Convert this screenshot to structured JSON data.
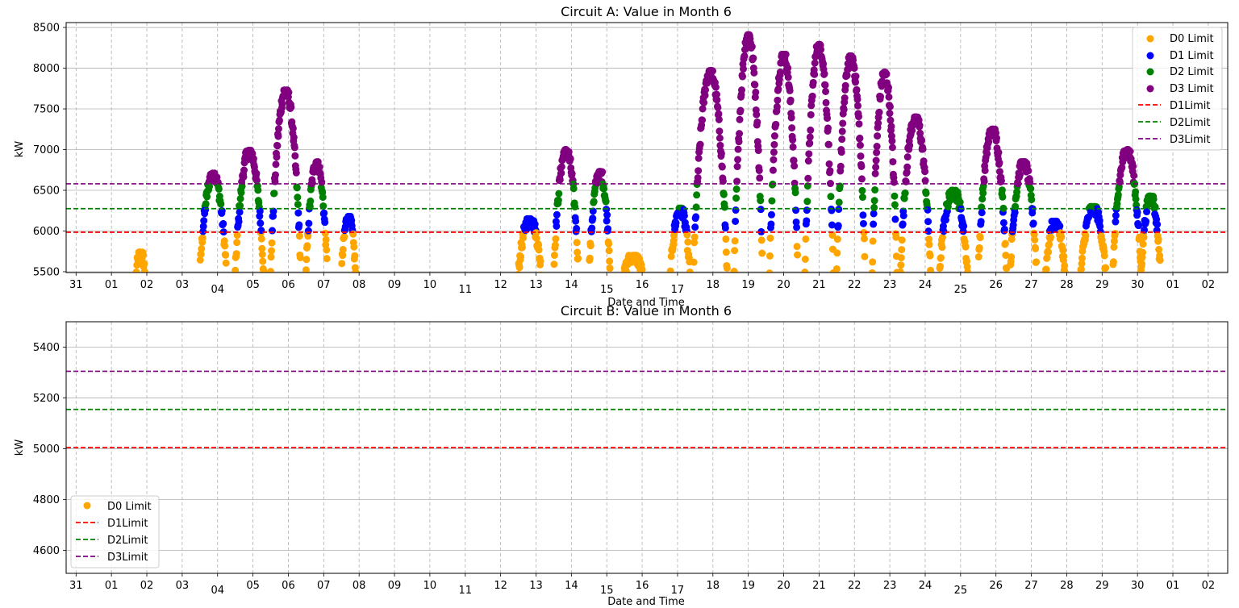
{
  "chart_data": [
    {
      "type": "scatter",
      "title": "Circuit A: Value in Month 6",
      "xlabel": "Date and Time",
      "ylabel": "kW",
      "ylim": [
        5490,
        8560
      ],
      "yticks": [
        5500,
        6000,
        6500,
        7000,
        7500,
        8000,
        8500
      ],
      "xlim": [
        -0.28,
        32.55
      ],
      "x_tick_labels": [
        "31",
        "01",
        "02",
        "03",
        "04",
        "05",
        "06",
        "07",
        "08",
        "09",
        "10",
        "11",
        "12",
        "13",
        "14",
        "15",
        "16",
        "17",
        "18",
        "19",
        "20",
        "21",
        "22",
        "23",
        "24",
        "25",
        "26",
        "27",
        "28",
        "29",
        "30",
        "01",
        "02"
      ],
      "grid": true,
      "legend_position": "top-right",
      "legend": [
        "D0 Limit",
        "D1 Limit",
        "D2 Limit",
        "D3 Limit",
        "D1Limit",
        "D2Limit",
        "D3Limit"
      ],
      "colors": {
        "D0": "#ffa500",
        "D1": "#0000ff",
        "D2": "#008000",
        "D3": "#800080",
        "L1": "#ff0000",
        "L2": "#008000",
        "L3": "#800080"
      },
      "limits": {
        "D1Limit": 5985,
        "D2Limit": 6275,
        "D3Limit": 6580
      },
      "daily_profile": [
        {
          "day": "01",
          "start": 1.7,
          "end": 1.95,
          "peak": 5740
        },
        {
          "day": "04",
          "start": 3.5,
          "end": 4.25,
          "peak": 6710
        },
        {
          "day": "05",
          "start": 4.5,
          "end": 5.3,
          "peak": 6990
        },
        {
          "day": "06",
          "start": 5.5,
          "end": 6.35,
          "peak": 7730
        },
        {
          "day": "07",
          "start": 6.5,
          "end": 7.1,
          "peak": 6850
        },
        {
          "day": "08",
          "start": 7.5,
          "end": 7.9,
          "peak": 6180
        },
        {
          "day": "13",
          "start": 12.5,
          "end": 13.15,
          "peak": 6150
        },
        {
          "day": "14",
          "start": 13.5,
          "end": 14.2,
          "peak": 7000
        },
        {
          "day": "15",
          "start": 14.5,
          "end": 15.1,
          "peak": 6730
        },
        {
          "day": "16",
          "start": 15.5,
          "end": 16.0,
          "peak": 5700
        },
        {
          "day": "17",
          "start": 16.8,
          "end": 17.35,
          "peak": 6280
        },
        {
          "day": "18",
          "start": 17.45,
          "end": 18.4,
          "peak": 7970
        },
        {
          "day": "19",
          "start": 18.6,
          "end": 19.4,
          "peak": 8410
        },
        {
          "day": "20",
          "start": 19.6,
          "end": 20.4,
          "peak": 8170
        },
        {
          "day": "21",
          "start": 20.6,
          "end": 21.4,
          "peak": 8290
        },
        {
          "day": "22",
          "start": 21.5,
          "end": 22.3,
          "peak": 8150
        },
        {
          "day": "23",
          "start": 22.5,
          "end": 23.2,
          "peak": 7950
        },
        {
          "day": "24",
          "start": 23.3,
          "end": 24.15,
          "peak": 7400
        },
        {
          "day": "25",
          "start": 24.4,
          "end": 25.2,
          "peak": 6500
        },
        {
          "day": "26",
          "start": 25.5,
          "end": 26.3,
          "peak": 7250
        },
        {
          "day": "27",
          "start": 26.4,
          "end": 27.15,
          "peak": 6850
        },
        {
          "day": "28",
          "start": 27.4,
          "end": 27.95,
          "peak": 6120
        },
        {
          "day": "29",
          "start": 28.4,
          "end": 29.1,
          "peak": 6300
        },
        {
          "day": "30",
          "start": 29.3,
          "end": 30.1,
          "peak": 7000
        },
        {
          "day": "01",
          "start": 30.1,
          "end": 30.65,
          "peak": 6430
        }
      ]
    },
    {
      "type": "scatter",
      "title": "Circuit B: Value in Month 6",
      "xlabel": "Date and Time",
      "ylabel": "kW",
      "ylim": [
        4510,
        5500
      ],
      "yticks": [
        4600,
        4800,
        5000,
        5200,
        5400
      ],
      "xlim": [
        -0.28,
        32.55
      ],
      "x_tick_labels": [
        "31",
        "01",
        "02",
        "03",
        "04",
        "05",
        "06",
        "07",
        "08",
        "09",
        "10",
        "11",
        "12",
        "13",
        "14",
        "15",
        "16",
        "17",
        "18",
        "19",
        "20",
        "21",
        "22",
        "23",
        "24",
        "25",
        "26",
        "27",
        "28",
        "29",
        "30",
        "01",
        "02"
      ],
      "grid": true,
      "legend_position": "bottom-left",
      "legend": [
        "D0 Limit",
        "D1Limit",
        "D2Limit",
        "D3Limit"
      ],
      "colors": {
        "D0": "#ffa500",
        "L1": "#ff0000",
        "L2": "#008000",
        "L3": "#800080"
      },
      "limits": {
        "D1Limit": 5005,
        "D2Limit": 5155,
        "D3Limit": 5305
      },
      "daily_profile": []
    }
  ]
}
